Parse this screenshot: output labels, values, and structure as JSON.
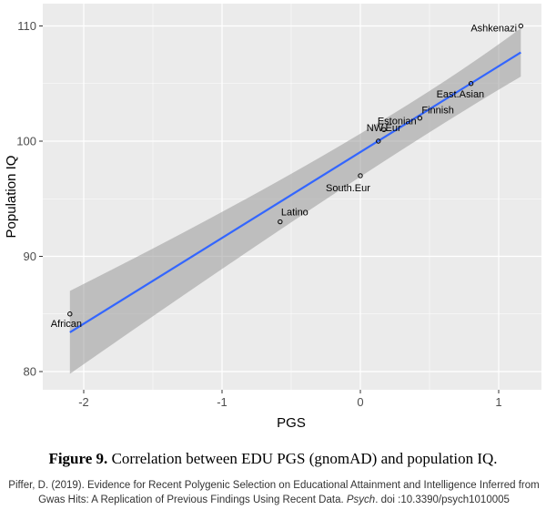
{
  "chart_data": {
    "type": "scatter",
    "xlabel": "PGS",
    "ylabel": "Population IQ",
    "xlim": [
      -2.3,
      1.3
    ],
    "ylim": [
      78,
      111
    ],
    "x_ticks": [
      -2,
      -1,
      0,
      1
    ],
    "x_tick_labels": [
      "-2",
      "-1",
      "0",
      "1"
    ],
    "y_ticks": [
      80,
      90,
      100,
      110
    ],
    "y_tick_labels": [
      "80",
      "90",
      "100",
      "110"
    ],
    "grid": true,
    "points": [
      {
        "label": "African",
        "x": -2.1,
        "y": 85
      },
      {
        "label": "Latino",
        "x": -0.58,
        "y": 93
      },
      {
        "label": "South.Eur",
        "x": 0.0,
        "y": 97
      },
      {
        "label": "NW.Eur",
        "x": 0.13,
        "y": 100
      },
      {
        "label": "Estonian",
        "x": 0.17,
        "y": 101
      },
      {
        "label": "Finnish",
        "x": 0.43,
        "y": 102
      },
      {
        "label": "East.Asian",
        "x": 0.8,
        "y": 105
      },
      {
        "label": "Ashkenazi",
        "x": 1.16,
        "y": 110
      }
    ],
    "fit": {
      "type": "linear",
      "x_range": [
        -2.1,
        1.16
      ],
      "y_at_start": 83.4,
      "y_at_end": 107.7,
      "ci_lower": [
        79.8,
        105.6
      ],
      "ci_upper": [
        87.0,
        109.8
      ],
      "ci_mid": [
        0.06,
        98.3,
        99.6
      ],
      "line_color": "#3366FF",
      "ci_color": "#999999"
    },
    "panel_color": "#EBEBEB"
  },
  "caption": {
    "label": "Figure 9.",
    "text": "Correlation between EDU PGS (gnomAD) and population IQ."
  },
  "citation": {
    "prefix": "Piffer, D. (2019). Evidence for Recent Polygenic Selection on Educational Attainment and Intelligence Inferred from Gwas Hits: A Replication of Previous Findings Using Recent Data.",
    "journal": "Psych",
    "suffix": ". doi :10.3390/psych1010005"
  }
}
